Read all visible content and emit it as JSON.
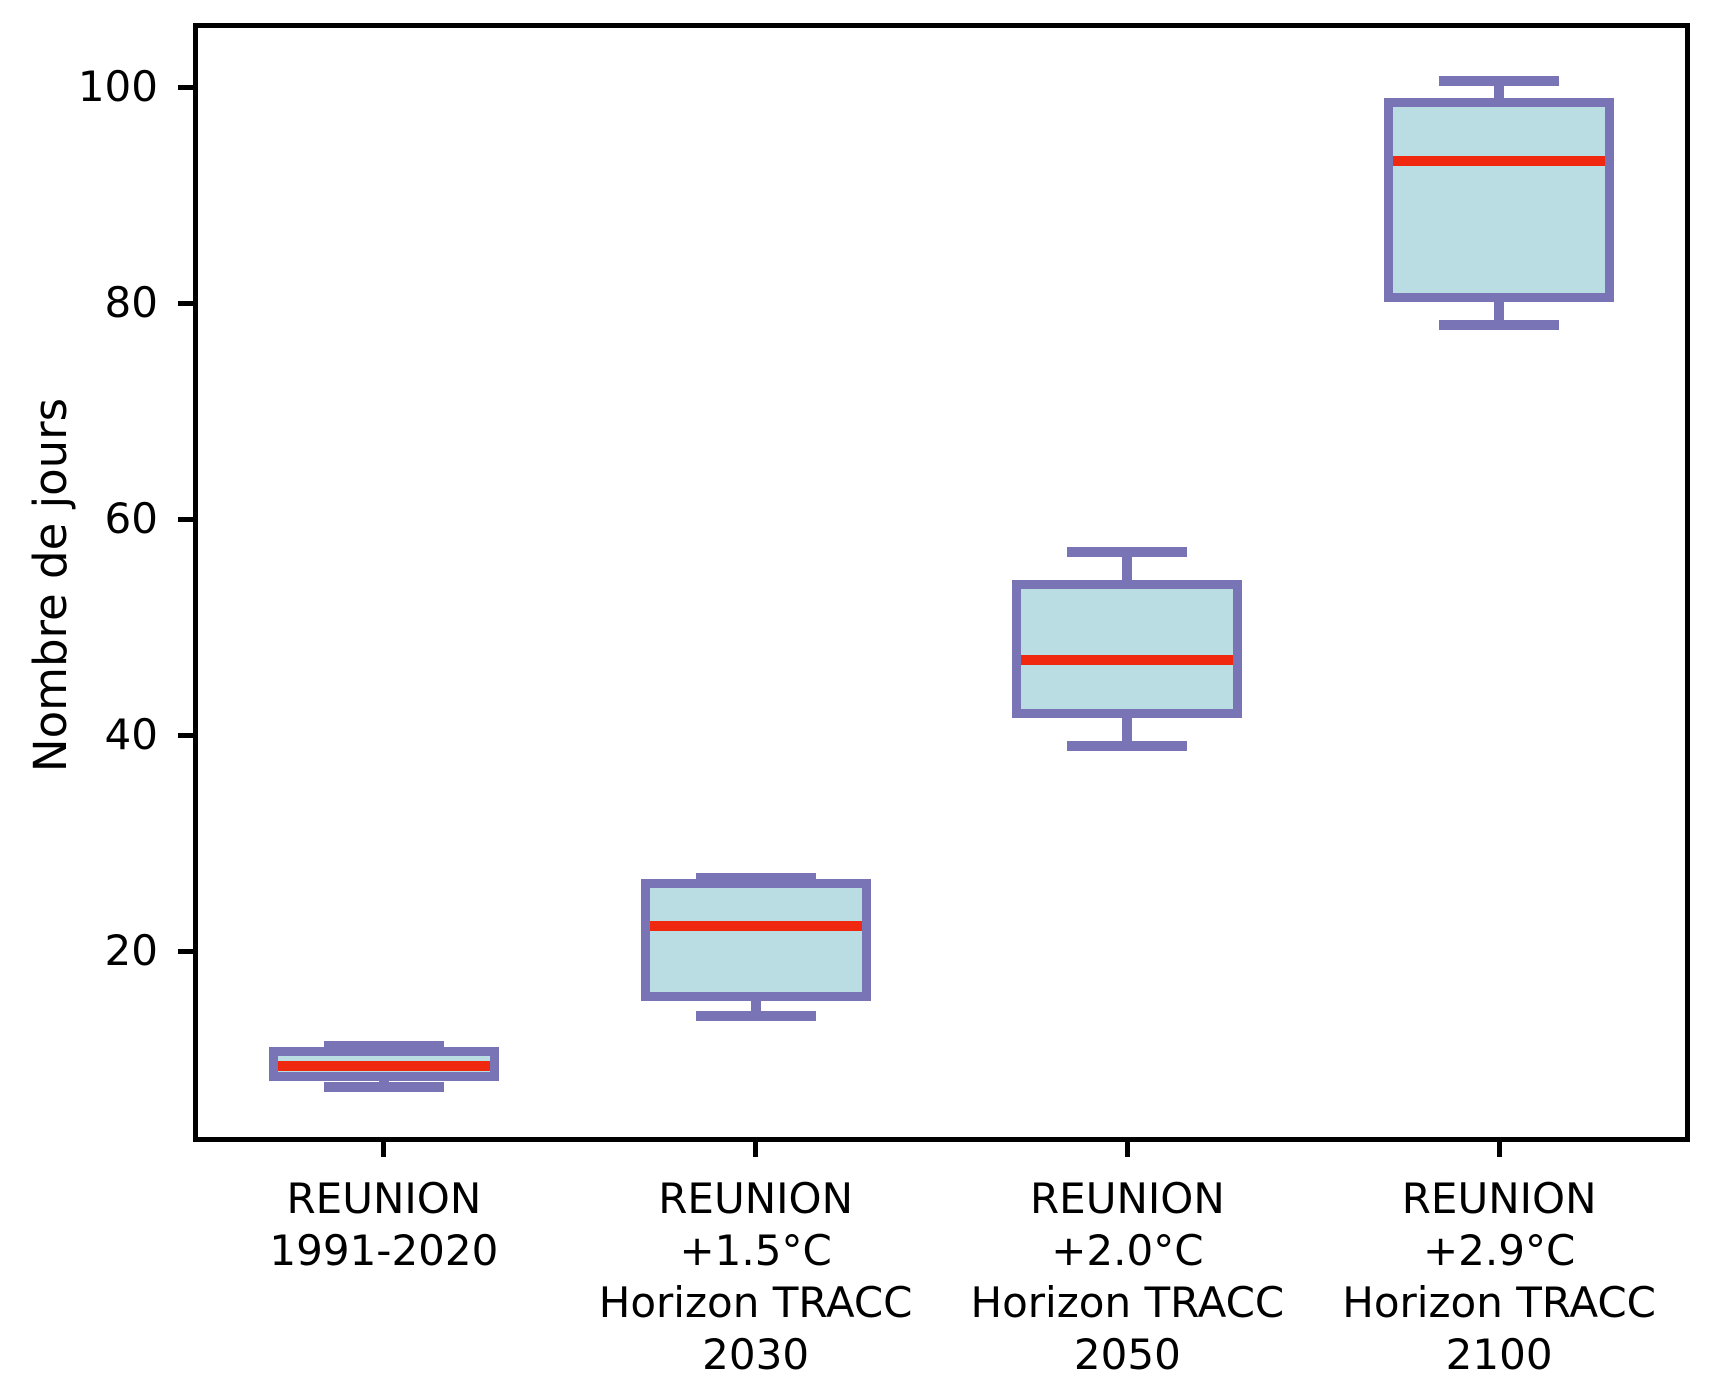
{
  "chart_data": {
    "type": "boxplot",
    "title": "",
    "xlabel": "",
    "ylabel": "Nombre de jours",
    "ylim": [
      2.8,
      105.5
    ],
    "yticks": [
      20,
      40,
      60,
      80,
      100
    ],
    "grid": false,
    "legend": null,
    "categories": [
      "REUNION 1991-2020",
      "REUNION +1.5°C Horizon TRACC 2030",
      "REUNION +2.0°C Horizon TRACC 2050",
      "REUNION +2.9°C Horizon TRACC 2100"
    ],
    "boxes": [
      {
        "label_lines": [
          "REUNION",
          "1991-2020"
        ],
        "whislo": 7.4,
        "q1": 8.4,
        "med": 9.4,
        "q3": 10.7,
        "whishi": 11.2
      },
      {
        "label_lines": [
          "REUNION",
          "+1.5°C",
          "Horizon TRACC",
          "2030"
        ],
        "whislo": 14.0,
        "q1": 15.8,
        "med": 22.3,
        "q3": 26.3,
        "whishi": 26.8
      },
      {
        "label_lines": [
          "REUNION",
          "+2.0°C",
          "Horizon TRACC",
          "2050"
        ],
        "whislo": 39.0,
        "q1": 42.0,
        "med": 47.0,
        "q3": 54.0,
        "whishi": 57.0
      },
      {
        "label_lines": [
          "REUNION",
          "+2.9°C",
          "Horizon TRACC",
          "2100"
        ],
        "whislo": 78.0,
        "q1": 80.5,
        "med": 93.2,
        "q3": 98.6,
        "whishi": 100.6
      }
    ],
    "colors": {
      "box_fill": "#b9dde2",
      "box_edge": "#7874b5",
      "median": "#f0280f",
      "axis": "#000000",
      "text": "#000000"
    }
  }
}
